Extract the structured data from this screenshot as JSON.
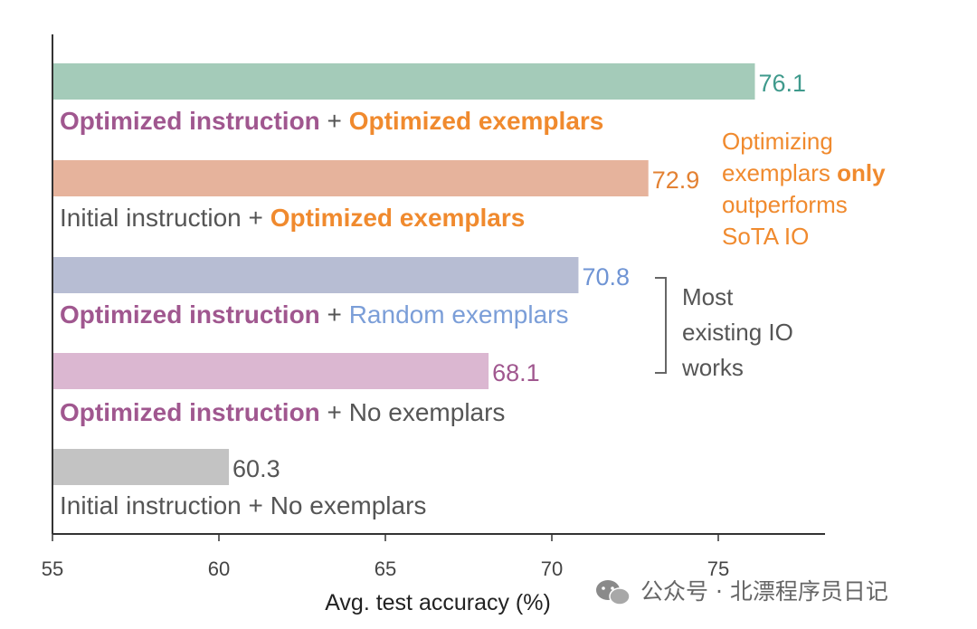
{
  "chart_data": {
    "type": "bar",
    "orientation": "horizontal",
    "xlabel": "Avg. test accuracy (%)",
    "xlim": [
      55,
      78
    ],
    "xticks": [
      55,
      60,
      65,
      70,
      75
    ],
    "bars": [
      {
        "value": 76.1,
        "value_label": "76.1",
        "color": "#a4cbb9",
        "value_color": "#3f9a8c",
        "label_parts": [
          {
            "text": "Optimized instruction",
            "color": "#a0578f",
            "bold": true
          },
          {
            "text": " + ",
            "color": "#555555",
            "bold": false
          },
          {
            "text": "Optimized exemplars",
            "color": "#f08a2e",
            "bold": true
          }
        ]
      },
      {
        "value": 72.9,
        "value_label": "72.9",
        "color": "#e6b39c",
        "value_color": "#e38132",
        "label_parts": [
          {
            "text": "Initial instruction",
            "color": "#555555",
            "bold": false
          },
          {
            "text": " + ",
            "color": "#555555",
            "bold": false
          },
          {
            "text": "Optimized exemplars",
            "color": "#f08a2e",
            "bold": true
          }
        ]
      },
      {
        "value": 70.8,
        "value_label": "70.8",
        "color": "#b7bdd3",
        "value_color": "#6f94d4",
        "label_parts": [
          {
            "text": "Optimized instruction",
            "color": "#a0578f",
            "bold": true
          },
          {
            "text": " + ",
            "color": "#555555",
            "bold": false
          },
          {
            "text": "Random exemplars",
            "color": "#7b9ed8",
            "bold": false
          }
        ]
      },
      {
        "value": 68.1,
        "value_label": "68.1",
        "color": "#dbb7d1",
        "value_color": "#a0578f",
        "label_parts": [
          {
            "text": "Optimized instruction",
            "color": "#a0578f",
            "bold": true
          },
          {
            "text": " + ",
            "color": "#555555",
            "bold": false
          },
          {
            "text": "No exemplars",
            "color": "#555555",
            "bold": false
          }
        ]
      },
      {
        "value": 60.3,
        "value_label": "60.3",
        "color": "#c3c3c3",
        "value_color": "#555555",
        "label_parts": [
          {
            "text": "Initial instruction",
            "color": "#555555",
            "bold": false
          },
          {
            "text": " + ",
            "color": "#555555",
            "bold": false
          },
          {
            "text": "No exemplars",
            "color": "#555555",
            "bold": false
          }
        ]
      }
    ],
    "annotations": [
      {
        "color": "#f08a2e",
        "lines": [
          [
            {
              "text": "Optimizing",
              "bold": false
            }
          ],
          [
            {
              "text": "exemplars ",
              "bold": false
            },
            {
              "text": "only",
              "bold": true
            }
          ],
          [
            {
              "text": "outperforms",
              "bold": false
            }
          ],
          [
            {
              "text": "SoTA IO",
              "bold": false
            }
          ]
        ]
      },
      {
        "color": "#555555",
        "bracket": true,
        "lines": [
          [
            {
              "text": "Most",
              "bold": false
            }
          ],
          [
            {
              "text": "existing IO",
              "bold": false
            }
          ],
          [
            {
              "text": "works",
              "bold": false
            }
          ]
        ]
      }
    ]
  },
  "watermark": {
    "text": "公众号 · 北漂程序员日记",
    "icon": "wechat-icon"
  }
}
